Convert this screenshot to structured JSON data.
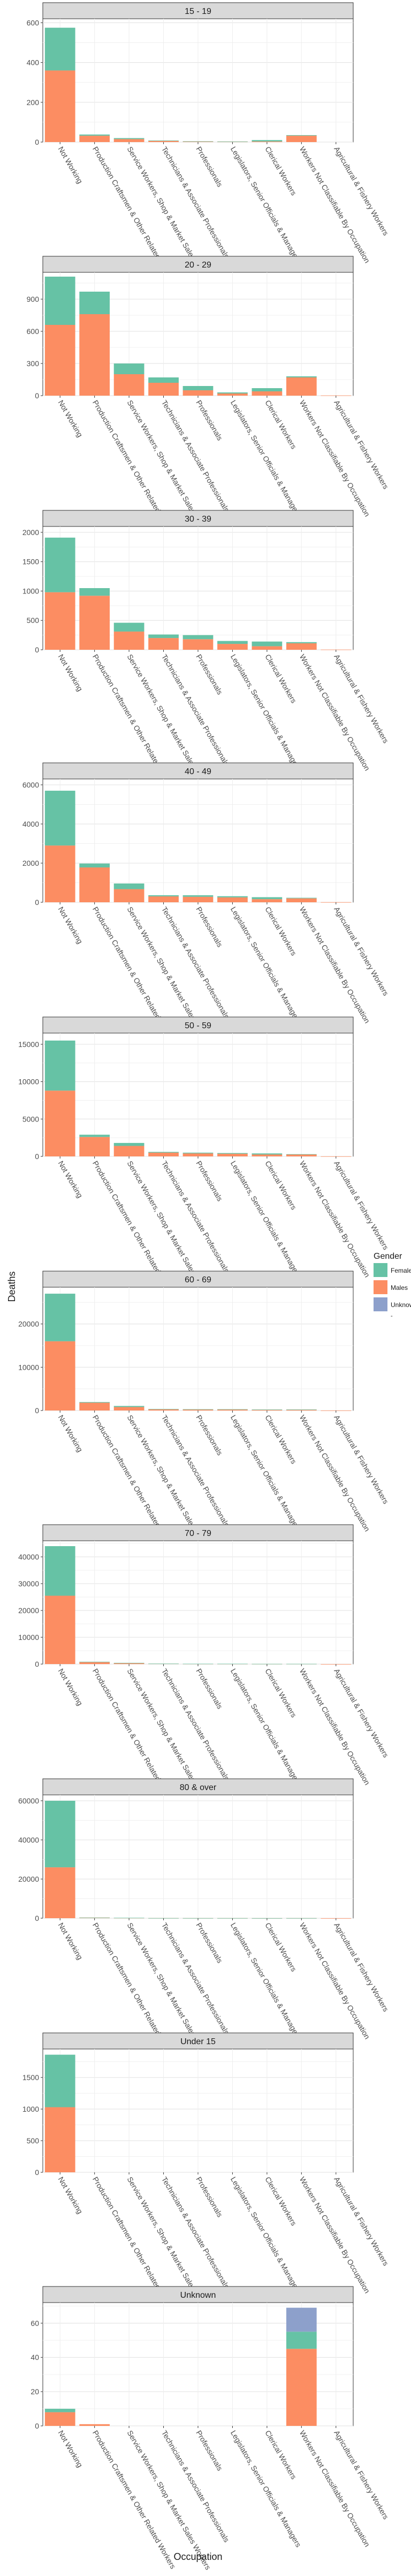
{
  "chart_data": {
    "type": "bar",
    "stacked": true,
    "facet_by": "Age group",
    "xlabel": "Occupation",
    "ylabel": "Deaths",
    "categories": [
      "Not Working",
      "Production Craftsmen & Other Related Workers",
      "Service Workers, Shop & Market Sales Workers",
      "Technicians & Associate Professionals",
      "Professionals",
      "Legislators, Senior Officials & Managers",
      "Clerical Workers",
      "Workers Not Classifiable By Occupation",
      "Agricultural & Fishery Workers"
    ],
    "legend": {
      "title": "Gender",
      "position": "right",
      "entries": [
        {
          "name": "Females",
          "color": "#66c2a5"
        },
        {
          "name": "Males",
          "color": "#fc8d62"
        },
        {
          "name": "Unknown",
          "color": "#8da0cb"
        }
      ],
      "extra_mark": "-"
    },
    "grid": true,
    "facets": [
      {
        "title": "15 - 19",
        "ylim": [
          0,
          620
        ],
        "yticks": [
          0,
          200,
          400,
          600
        ],
        "males": [
          360,
          32,
          15,
          6,
          3,
          2,
          3,
          32,
          0
        ],
        "females": [
          215,
          6,
          5,
          2,
          1,
          1,
          7,
          3,
          0
        ],
        "unknown": [
          0,
          0,
          0,
          0,
          0,
          0,
          0,
          0,
          0
        ]
      },
      {
        "title": "20 - 29",
        "ylim": [
          0,
          1150
        ],
        "yticks": [
          0,
          300,
          600,
          900
        ],
        "males": [
          660,
          760,
          200,
          120,
          50,
          20,
          40,
          170,
          2
        ],
        "females": [
          450,
          210,
          100,
          50,
          40,
          10,
          30,
          10,
          0
        ],
        "unknown": [
          0,
          0,
          0,
          0,
          0,
          0,
          0,
          0,
          0
        ]
      },
      {
        "title": "30 - 39",
        "ylim": [
          0,
          2100
        ],
        "yticks": [
          0,
          500,
          1000,
          1500,
          2000
        ],
        "males": [
          980,
          920,
          310,
          200,
          180,
          100,
          60,
          110,
          3
        ],
        "females": [
          930,
          130,
          150,
          60,
          70,
          50,
          80,
          20,
          0
        ],
        "unknown": [
          0,
          0,
          0,
          0,
          0,
          0,
          0,
          0,
          0
        ]
      },
      {
        "title": "40 - 49",
        "ylim": [
          0,
          6300
        ],
        "yticks": [
          0,
          2000,
          4000,
          6000
        ],
        "males": [
          2900,
          1780,
          670,
          300,
          280,
          250,
          160,
          200,
          5
        ],
        "females": [
          2800,
          200,
          290,
          60,
          80,
          60,
          100,
          30,
          0
        ],
        "unknown": [
          0,
          0,
          0,
          0,
          0,
          0,
          0,
          0,
          0
        ]
      },
      {
        "title": "50 - 59",
        "ylim": [
          0,
          16500
        ],
        "yticks": [
          0,
          5000,
          10000,
          15000
        ],
        "males": [
          8800,
          2600,
          1400,
          500,
          400,
          350,
          250,
          250,
          10
        ],
        "females": [
          6700,
          300,
          400,
          100,
          100,
          100,
          150,
          50,
          0
        ],
        "unknown": [
          0,
          0,
          0,
          0,
          0,
          0,
          0,
          0,
          0
        ]
      },
      {
        "title": "60 - 69",
        "ylim": [
          0,
          28500
        ],
        "yticks": [
          0,
          10000,
          20000
        ],
        "males": [
          16000,
          1800,
          800,
          300,
          250,
          250,
          150,
          200,
          10
        ],
        "females": [
          11000,
          150,
          250,
          50,
          50,
          50,
          80,
          30,
          0
        ],
        "unknown": [
          0,
          0,
          0,
          0,
          0,
          0,
          0,
          0,
          0
        ]
      },
      {
        "title": "70 - 79",
        "ylim": [
          0,
          46000
        ],
        "yticks": [
          0,
          10000,
          20000,
          30000,
          40000
        ],
        "males": [
          25500,
          800,
          350,
          150,
          100,
          100,
          50,
          80,
          5
        ],
        "females": [
          18500,
          60,
          100,
          20,
          20,
          20,
          30,
          10,
          0
        ],
        "unknown": [
          0,
          0,
          0,
          0,
          0,
          0,
          0,
          0,
          0
        ]
      },
      {
        "title": "80 & over",
        "ylim": [
          0,
          63000
        ],
        "yticks": [
          0,
          20000,
          40000,
          60000
        ],
        "males": [
          26000,
          300,
          150,
          50,
          40,
          40,
          20,
          40,
          2
        ],
        "females": [
          34000,
          30,
          50,
          10,
          10,
          10,
          10,
          5,
          0
        ],
        "unknown": [
          0,
          0,
          0,
          0,
          0,
          0,
          0,
          0,
          0
        ]
      },
      {
        "title": "Under 15",
        "ylim": [
          0,
          1950
        ],
        "yticks": [
          0,
          500,
          1000,
          1500
        ],
        "males": [
          1030,
          0,
          0,
          0,
          0,
          0,
          0,
          0,
          0
        ],
        "females": [
          830,
          0,
          0,
          0,
          0,
          0,
          0,
          0,
          0
        ],
        "unknown": [
          0,
          0,
          0,
          0,
          0,
          0,
          0,
          0,
          0
        ]
      },
      {
        "title": "Unknown",
        "ylim": [
          0,
          72
        ],
        "yticks": [
          0,
          20,
          40,
          60
        ],
        "males": [
          8,
          1,
          0,
          0,
          0,
          0,
          0,
          45,
          0
        ],
        "females": [
          2,
          0,
          0,
          0,
          0,
          0,
          0,
          10,
          0
        ],
        "unknown": [
          0,
          0,
          0,
          0,
          0,
          0,
          0,
          14,
          0
        ]
      }
    ]
  }
}
